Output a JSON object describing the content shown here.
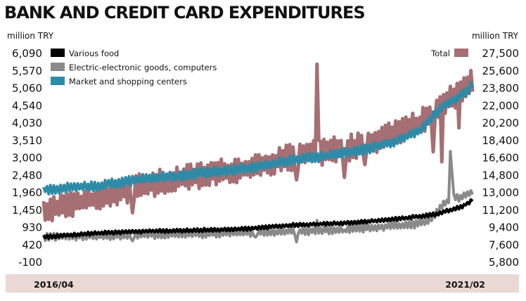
{
  "title": "BANK AND CREDIT CARD EXPENDITURES",
  "colors": {
    "various_food": "#000000",
    "electronics": "#8a8a8a",
    "market": "#2e8ba8",
    "total": "#a56f73",
    "xband": "#ead8d6"
  },
  "chart_data": {
    "type": "line",
    "title": "BANK AND CREDIT CARD EXPENDITURES",
    "x_start_label": "2016/04",
    "x_end_label": "2021/02",
    "left_axis": {
      "unit": "million TRY",
      "ticks": [
        "6,090",
        "5,570",
        "5,060",
        "4,540",
        "4,030",
        "3,510",
        "3,000",
        "2,480",
        "1,960",
        "1,450",
        "930",
        "420",
        "-100"
      ],
      "range": [
        -100,
        6090
      ]
    },
    "right_axis": {
      "unit": "million TRY",
      "ticks": [
        "27,500",
        "25,600",
        "23,800",
        "22,000",
        "20,200",
        "18,400",
        "16,600",
        "14,800",
        "13,000",
        "11,200",
        "9,400",
        "7,600",
        "5,800"
      ],
      "range": [
        5800,
        27500
      ]
    },
    "x_weeks": 252,
    "series": [
      {
        "name": "Various food",
        "axis": "left",
        "color": "#000000",
        "anchors": [
          [
            0,
            650
          ],
          [
            30,
            760
          ],
          [
            60,
            820
          ],
          [
            90,
            850
          ],
          [
            120,
            900
          ],
          [
            145,
            1000
          ],
          [
            170,
            1050
          ],
          [
            190,
            1110
          ],
          [
            210,
            1200
          ],
          [
            230,
            1330
          ],
          [
            245,
            1560
          ],
          [
            251,
            1740
          ]
        ]
      },
      {
        "name": "Electric-electronic goods, computers",
        "axis": "left",
        "color": "#8a8a8a",
        "anchors": [
          [
            0,
            650
          ],
          [
            30,
            680
          ],
          [
            60,
            720
          ],
          [
            90,
            740
          ],
          [
            120,
            780
          ],
          [
            150,
            820
          ],
          [
            170,
            860
          ],
          [
            195,
            940
          ],
          [
            215,
            1010
          ],
          [
            225,
            1100
          ],
          [
            232,
            1500
          ],
          [
            236,
            1700
          ],
          [
            240,
            1850
          ],
          [
            244,
            1800
          ],
          [
            251,
            1980
          ]
        ]
      },
      {
        "name": "Market and shopping centers",
        "axis": "left",
        "color": "#2e8ba8",
        "anchors": [
          [
            0,
            2060
          ],
          [
            30,
            2160
          ],
          [
            60,
            2380
          ],
          [
            90,
            2520
          ],
          [
            120,
            2690
          ],
          [
            145,
            2920
          ],
          [
            165,
            3050
          ],
          [
            185,
            3200
          ],
          [
            205,
            3480
          ],
          [
            220,
            3800
          ],
          [
            235,
            4600
          ],
          [
            245,
            4860
          ],
          [
            251,
            5140
          ]
        ]
      },
      {
        "name": "Total",
        "axis": "right",
        "color": "#a56f73",
        "anchors": [
          [
            0,
            11200
          ],
          [
            30,
            12400
          ],
          [
            60,
            13800
          ],
          [
            90,
            14800
          ],
          [
            120,
            15600
          ],
          [
            145,
            16700
          ],
          [
            165,
            17300
          ],
          [
            185,
            17900
          ],
          [
            205,
            19300
          ],
          [
            220,
            20300
          ],
          [
            235,
            22300
          ],
          [
            245,
            23800
          ],
          [
            251,
            24600
          ]
        ]
      }
    ],
    "grid": false,
    "legend_position": "top-left"
  }
}
